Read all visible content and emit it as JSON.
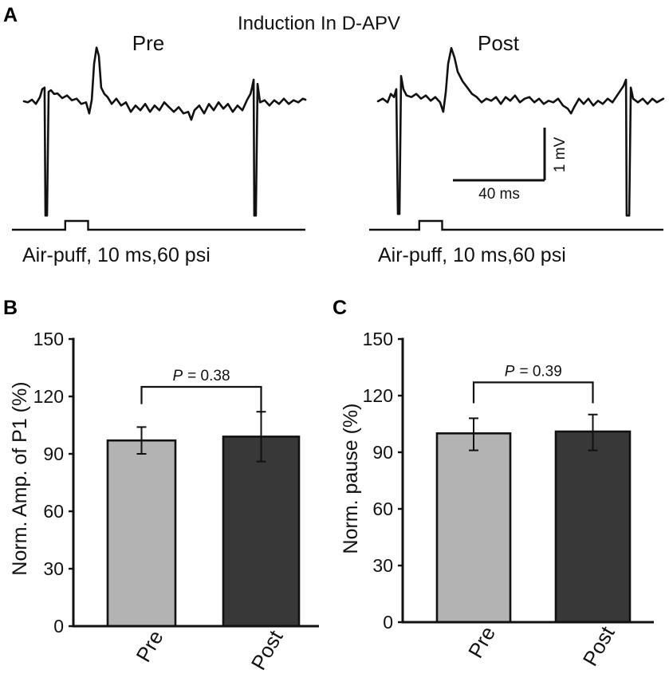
{
  "figure": {
    "panel_labels": {
      "a": "A",
      "b": "B",
      "c": "C"
    }
  },
  "colors": {
    "ink": "#111111"
  },
  "chart_data": [
    {
      "type": "line",
      "title": "Induction In D-APV",
      "series": [
        {
          "name": "Pre",
          "stimulus_label": "Air-puff, 10 ms,60 psi",
          "points": [
            [
              0,
              0
            ],
            [
              1.7,
              -0.02
            ],
            [
              3.5,
              0.03
            ],
            [
              5.2,
              -0.05
            ],
            [
              7.0,
              0.08
            ],
            [
              8.0,
              0.23
            ],
            [
              9.0,
              0.26
            ],
            [
              9.4,
              -2.17
            ],
            [
              10.1,
              -2.17
            ],
            [
              10.8,
              0.18
            ],
            [
              11.8,
              0.21
            ],
            [
              13.2,
              0.14
            ],
            [
              14.6,
              0.15
            ],
            [
              16.7,
              0.06
            ],
            [
              18.8,
              0.11
            ],
            [
              20.9,
              0.02
            ],
            [
              23.0,
              0.05
            ],
            [
              25.0,
              -0.05
            ],
            [
              27.1,
              -0.02
            ],
            [
              28.5,
              -0.23
            ],
            [
              29.6,
              0.03
            ],
            [
              30.6,
              0.71
            ],
            [
              31.7,
              1.02
            ],
            [
              32.7,
              0.86
            ],
            [
              33.7,
              0.26
            ],
            [
              35.1,
              0.14
            ],
            [
              36.5,
              0.08
            ],
            [
              38.3,
              -0.05
            ],
            [
              40.3,
              0.05
            ],
            [
              42.4,
              -0.08
            ],
            [
              44.5,
              -0.02
            ],
            [
              46.6,
              -0.2
            ],
            [
              48.7,
              -0.08
            ],
            [
              50.8,
              -0.17
            ],
            [
              52.9,
              -0.05
            ],
            [
              55.0,
              -0.2
            ],
            [
              57.0,
              -0.08
            ],
            [
              59.1,
              -0.17
            ],
            [
              61.2,
              -0.02
            ],
            [
              63.3,
              -0.11
            ],
            [
              65.4,
              -0.2
            ],
            [
              67.5,
              -0.11
            ],
            [
              69.6,
              -0.23
            ],
            [
              71.7,
              -0.2
            ],
            [
              73.0,
              -0.35
            ],
            [
              74.4,
              -0.17
            ],
            [
              76.5,
              -0.08
            ],
            [
              78.6,
              -0.23
            ],
            [
              80.7,
              -0.05
            ],
            [
              82.8,
              -0.17
            ],
            [
              84.9,
              -0.02
            ],
            [
              87.0,
              -0.14
            ],
            [
              89.0,
              -0.05
            ],
            [
              91.1,
              -0.2
            ],
            [
              93.2,
              -0.08
            ],
            [
              95.3,
              -0.17
            ],
            [
              97.4,
              0.03
            ],
            [
              98.8,
              0.14
            ],
            [
              99.5,
              0.26
            ],
            [
              100.2,
              0.41
            ],
            [
              100.5,
              -2.17
            ],
            [
              101.2,
              -2.17
            ],
            [
              101.9,
              0.33
            ],
            [
              103.0,
              -0.02
            ],
            [
              105.0,
              0.02
            ],
            [
              107.1,
              -0.08
            ],
            [
              109.2,
              0.02
            ],
            [
              111.3,
              -0.05
            ],
            [
              113.4,
              0.05
            ],
            [
              115.5,
              -0.05
            ],
            [
              117.6,
              0.02
            ],
            [
              119.7,
              -0.02
            ],
            [
              121.7,
              0.05
            ],
            [
              122.8,
              0.03
            ]
          ]
        },
        {
          "name": "Post",
          "stimulus_label": "Air-puff, 10 ms,60 psi",
          "points": [
            [
              0,
              -0.03
            ],
            [
              2.1,
              0.02
            ],
            [
              4.2,
              -0.05
            ],
            [
              5.6,
              0.11
            ],
            [
              7.0,
              0.05
            ],
            [
              8.0,
              0.2
            ],
            [
              8.7,
              -2.17
            ],
            [
              9.4,
              -2.17
            ],
            [
              10.1,
              0.45
            ],
            [
              11.1,
              0.2
            ],
            [
              12.5,
              0.08
            ],
            [
              14.6,
              0.05
            ],
            [
              16.7,
              0.11
            ],
            [
              18.8,
              0.02
            ],
            [
              20.9,
              0.08
            ],
            [
              23.0,
              -0.02
            ],
            [
              25.0,
              0.05
            ],
            [
              27.1,
              -0.05
            ],
            [
              28.5,
              -0.23
            ],
            [
              29.6,
              0.15
            ],
            [
              30.6,
              0.68
            ],
            [
              32.0,
              0.98
            ],
            [
              33.4,
              0.8
            ],
            [
              34.8,
              0.53
            ],
            [
              36.9,
              0.35
            ],
            [
              39.0,
              0.23
            ],
            [
              41.0,
              0.11
            ],
            [
              43.1,
              0.05
            ],
            [
              45.2,
              -0.05
            ],
            [
              47.3,
              0.02
            ],
            [
              49.4,
              -0.02
            ],
            [
              51.5,
              0.05
            ],
            [
              53.6,
              -0.08
            ],
            [
              55.7,
              0.05
            ],
            [
              57.7,
              -0.02
            ],
            [
              59.8,
              0.08
            ],
            [
              61.9,
              -0.05
            ],
            [
              64.0,
              0.02
            ],
            [
              66.1,
              0.05
            ],
            [
              68.2,
              -0.05
            ],
            [
              70.3,
              0.02
            ],
            [
              72.3,
              -0.08
            ],
            [
              74.4,
              -0.02
            ],
            [
              76.5,
              -0.05
            ],
            [
              78.6,
              0.02
            ],
            [
              80.7,
              -0.11
            ],
            [
              82.8,
              -0.17
            ],
            [
              84.2,
              -0.26
            ],
            [
              85.6,
              -0.14
            ],
            [
              87.7,
              0.02
            ],
            [
              89.7,
              -0.08
            ],
            [
              91.8,
              0.02
            ],
            [
              93.9,
              -0.11
            ],
            [
              96.0,
              -0.02
            ],
            [
              98.1,
              -0.08
            ],
            [
              100.2,
              0.02
            ],
            [
              102.3,
              -0.05
            ],
            [
              104.3,
              0.08
            ],
            [
              105.7,
              0.17
            ],
            [
              107.1,
              0.26
            ],
            [
              108.2,
              0.38
            ],
            [
              108.5,
              -2.2
            ],
            [
              109.6,
              -2.2
            ],
            [
              110.3,
              0.23
            ],
            [
              111.3,
              0.02
            ],
            [
              113.4,
              -0.05
            ],
            [
              115.5,
              0.02
            ],
            [
              117.6,
              -0.08
            ],
            [
              119.7,
              0.02
            ],
            [
              121.7,
              -0.05
            ],
            [
              124.5,
              0.02
            ]
          ]
        }
      ],
      "stimulus": {
        "onset_ms": 18,
        "duration_ms": 10
      },
      "scale_bar": {
        "time_ms": 40,
        "time_label": "40 ms",
        "voltage_mv": 1,
        "voltage_label": "1 mV"
      }
    },
    {
      "type": "bar",
      "categories": [
        "Pre",
        "Post"
      ],
      "values": [
        97,
        99
      ],
      "error_ranges": [
        [
          90,
          104
        ],
        [
          86,
          112
        ]
      ],
      "colors": [
        "#b3b3b3",
        "#383838"
      ],
      "ylabel": "Norm. Amp. of P1 (%)",
      "ylim": [
        0,
        150
      ],
      "yticks": [
        0,
        30,
        60,
        90,
        120,
        150
      ],
      "grid": false,
      "annotation": {
        "p_symbol": "P",
        "p_text": "= 0.38"
      }
    },
    {
      "type": "bar",
      "categories": [
        "Pre",
        "Post"
      ],
      "values": [
        100,
        101
      ],
      "error_ranges": [
        [
          91,
          108
        ],
        [
          91,
          110
        ]
      ],
      "colors": [
        "#b3b3b3",
        "#383838"
      ],
      "ylabel": "Norm. pause (%)",
      "ylim": [
        0,
        150
      ],
      "yticks": [
        0,
        30,
        60,
        90,
        120,
        150
      ],
      "grid": false,
      "annotation": {
        "p_symbol": "P",
        "p_text": "= 0.39"
      }
    }
  ]
}
